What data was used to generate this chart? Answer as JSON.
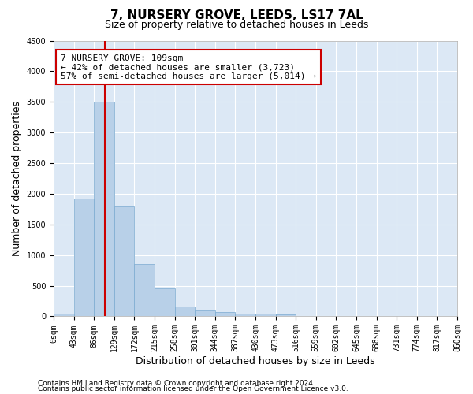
{
  "title": "7, NURSERY GROVE, LEEDS, LS17 7AL",
  "subtitle": "Size of property relative to detached houses in Leeds",
  "xlabel": "Distribution of detached houses by size in Leeds",
  "ylabel": "Number of detached properties",
  "bar_color": "#b8d0e8",
  "bar_edge_color": "#7aaad0",
  "background_color": "#dce8f5",
  "grid_color": "#ffffff",
  "bin_edges": [
    0,
    43,
    86,
    129,
    172,
    215,
    258,
    301,
    344,
    387,
    430,
    473,
    516,
    559,
    602,
    645,
    688,
    731,
    774,
    817,
    860
  ],
  "bar_heights": [
    50,
    1920,
    3500,
    1790,
    850,
    450,
    160,
    95,
    75,
    50,
    45,
    30,
    0,
    0,
    0,
    0,
    0,
    0,
    0,
    0
  ],
  "tick_labels": [
    "0sqm",
    "43sqm",
    "86sqm",
    "129sqm",
    "172sqm",
    "215sqm",
    "258sqm",
    "301sqm",
    "344sqm",
    "387sqm",
    "430sqm",
    "473sqm",
    "516sqm",
    "559sqm",
    "602sqm",
    "645sqm",
    "688sqm",
    "731sqm",
    "774sqm",
    "817sqm",
    "860sqm"
  ],
  "ylim": [
    0,
    4500
  ],
  "yticks": [
    0,
    500,
    1000,
    1500,
    2000,
    2500,
    3000,
    3500,
    4000,
    4500
  ],
  "property_size": 109,
  "red_line_color": "#cc0000",
  "annotation_text": "7 NURSERY GROVE: 109sqm\n← 42% of detached houses are smaller (3,723)\n57% of semi-detached houses are larger (5,014) →",
  "annotation_box_color": "#ffffff",
  "annotation_box_edge": "#cc0000",
  "footnote1": "Contains HM Land Registry data © Crown copyright and database right 2024.",
  "footnote2": "Contains public sector information licensed under the Open Government Licence v3.0.",
  "title_fontsize": 11,
  "subtitle_fontsize": 9,
  "axis_label_fontsize": 9,
  "tick_fontsize": 7,
  "annotation_fontsize": 8,
  "footnote_fontsize": 6.5
}
